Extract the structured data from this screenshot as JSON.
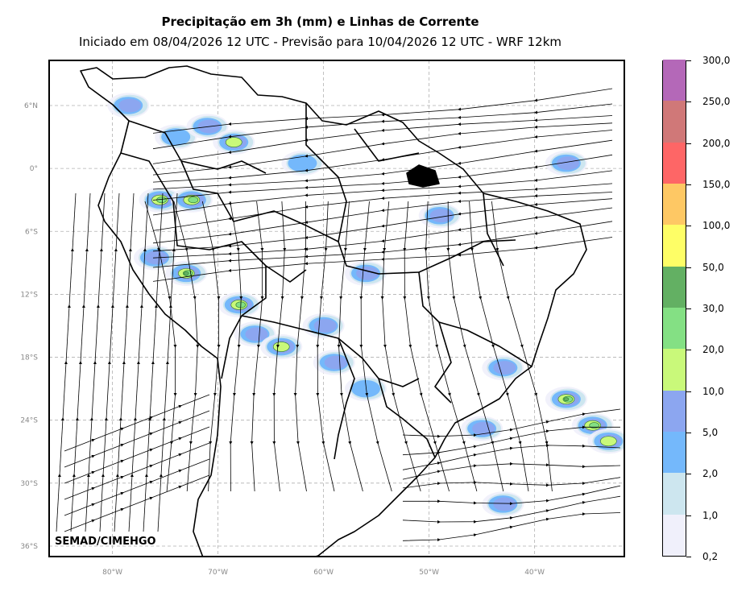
{
  "title": "Precipitação em 3h (mm) e Linhas de Corrente",
  "subtitle": "Iniciado em 08/04/2026 12 UTC - Previsão para 10/04/2026 12 UTC - WRF 12km",
  "watermark": "SEMAD/CIMEHGO",
  "map": {
    "lon_range": [
      -86,
      -31.5
    ],
    "lat_range": [
      -37,
      10.3
    ],
    "lon_ticks": [
      {
        "value": -80,
        "label": "80°W"
      },
      {
        "value": -70,
        "label": "70°W"
      },
      {
        "value": -60,
        "label": "60°W"
      },
      {
        "value": -50,
        "label": "50°W"
      },
      {
        "value": -40,
        "label": "40°W"
      }
    ],
    "lat_ticks": [
      {
        "value": 6,
        "label": "6°N"
      },
      {
        "value": 0,
        "label": "0°"
      },
      {
        "value": -6,
        "label": "6°S"
      },
      {
        "value": -12,
        "label": "12°S"
      },
      {
        "value": -18,
        "label": "18°S"
      },
      {
        "value": -24,
        "label": "24°S"
      },
      {
        "value": -30,
        "label": "30°S"
      },
      {
        "value": -36,
        "label": "36°S"
      }
    ],
    "gridlines": true,
    "ocean_color": "#ffffff",
    "coast_color": "#000000"
  },
  "colorbar": {
    "labels": [
      "0,2",
      "1,0",
      "2,0",
      "5,0",
      "10,0",
      "20,0",
      "30,0",
      "50,0",
      "100,0",
      "150,0",
      "200,0",
      "250,0",
      "300,0"
    ],
    "colors": [
      "#f0f0fb",
      "#cde6ef",
      "#74b8fb",
      "#8ca6f0",
      "#c9f97a",
      "#84e084",
      "#63b063",
      "#fefe66",
      "#fec864",
      "#fe6666",
      "#d07878",
      "#b468b8"
    ]
  },
  "precip_cells": [
    {
      "lon": -78.5,
      "lat": 6.0,
      "level": 3
    },
    {
      "lon": -74,
      "lat": 3.0,
      "level": 2
    },
    {
      "lon": -71,
      "lat": 4.0,
      "level": 3
    },
    {
      "lon": -68.5,
      "lat": 2.5,
      "level": 4
    },
    {
      "lon": -75.5,
      "lat": -3.0,
      "level": 5
    },
    {
      "lon": -72.5,
      "lat": -3.0,
      "level": 5
    },
    {
      "lon": -76,
      "lat": -8.5,
      "level": 3
    },
    {
      "lon": -73,
      "lat": -10,
      "level": 6
    },
    {
      "lon": -68,
      "lat": -13,
      "level": 5
    },
    {
      "lon": -66.5,
      "lat": -15.8,
      "level": 3
    },
    {
      "lon": -64,
      "lat": -17,
      "level": 4
    },
    {
      "lon": -60,
      "lat": -15,
      "level": 3
    },
    {
      "lon": -59,
      "lat": -18.5,
      "level": 3
    },
    {
      "lon": -56,
      "lat": -10,
      "level": 3
    },
    {
      "lon": -49,
      "lat": -4.5,
      "level": 3
    },
    {
      "lon": -37,
      "lat": -22,
      "level": 6
    },
    {
      "lon": -34.5,
      "lat": -24.5,
      "level": 5
    },
    {
      "lon": -33,
      "lat": -26,
      "level": 4
    },
    {
      "lon": -43,
      "lat": -32,
      "level": 3
    },
    {
      "lon": -37,
      "lat": 0.5,
      "level": 3
    },
    {
      "lon": -45,
      "lat": -24.8,
      "level": 3
    },
    {
      "lon": -43,
      "lat": -19,
      "level": 3
    },
    {
      "lon": -62,
      "lat": 0.5,
      "level": 2
    },
    {
      "lon": -56,
      "lat": -21,
      "level": 2
    }
  ],
  "streamlines": [
    {
      "flow": "easterly",
      "lat": 4
    },
    {
      "flow": "easterly",
      "lat": 0
    },
    {
      "flow": "easterly",
      "lat": -4
    },
    {
      "flow": "southerly",
      "lon": -76
    },
    {
      "flow": "westerly",
      "lat": -30
    }
  ]
}
